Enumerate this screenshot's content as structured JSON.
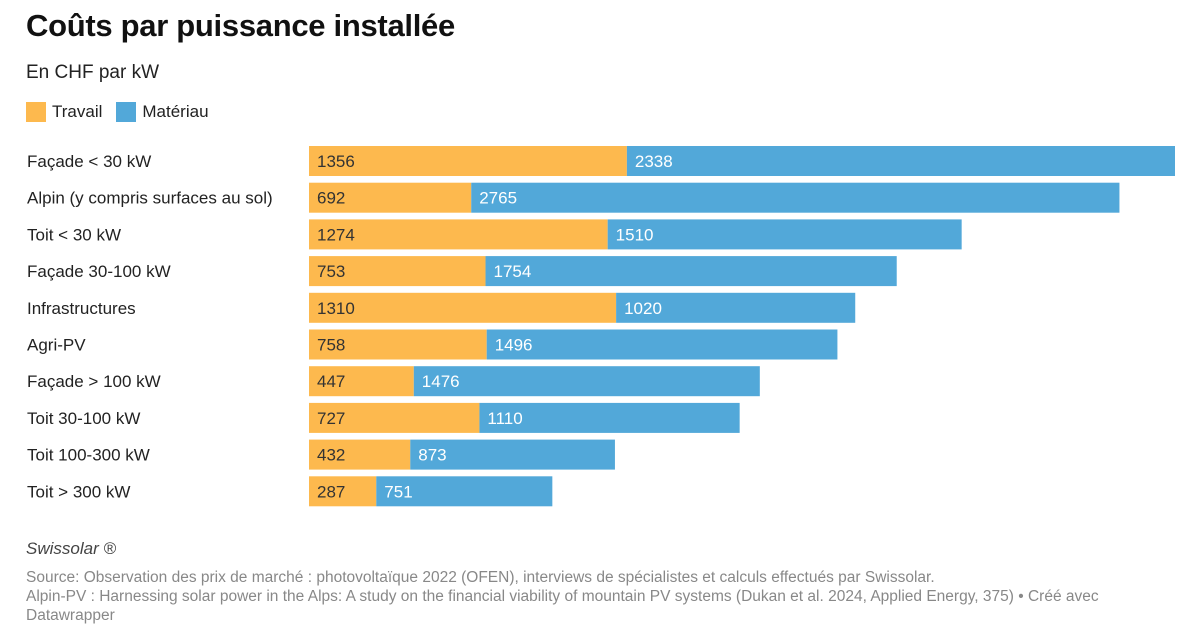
{
  "title": "Coûts par puissance installée",
  "subtitle": "En CHF par kW",
  "colors": {
    "travail": "#fdb94e",
    "materiau": "#52a8d9"
  },
  "chart_data": {
    "type": "bar",
    "orientation": "horizontal",
    "stacked": true,
    "categories": [
      "Façade < 30 kW",
      "Alpin (y compris surfaces au sol)",
      "Toit < 30 kW",
      "Façade 30-100 kW",
      "Infrastructures",
      "Agri-PV",
      "Façade > 100 kW",
      "Toit 30-100 kW",
      "Toit 100-300 kW",
      "Toit > 300 kW"
    ],
    "series": [
      {
        "name": "Travail",
        "values": [
          1356,
          692,
          1274,
          753,
          1310,
          758,
          447,
          727,
          432,
          287
        ]
      },
      {
        "name": "Matériau",
        "values": [
          2338,
          2765,
          1510,
          1754,
          1020,
          1496,
          1476,
          1110,
          873,
          751
        ]
      }
    ],
    "xlim": [
      0,
      3694
    ],
    "grid": false,
    "legend_position": "top-left"
  },
  "footer": {
    "brand": "Swissolar ®",
    "source": "Source: Observation des prix de marché : photovoltaïque 2022 (OFEN), interviews de spécialistes et calculs effectués par Swissolar.",
    "note": "Alpin-PV : Harnessing solar power in the Alps: A study on the financial viability of mountain PV systems (Dukan et al. 2024, Applied Energy, 375) • Créé avec Datawrapper"
  }
}
